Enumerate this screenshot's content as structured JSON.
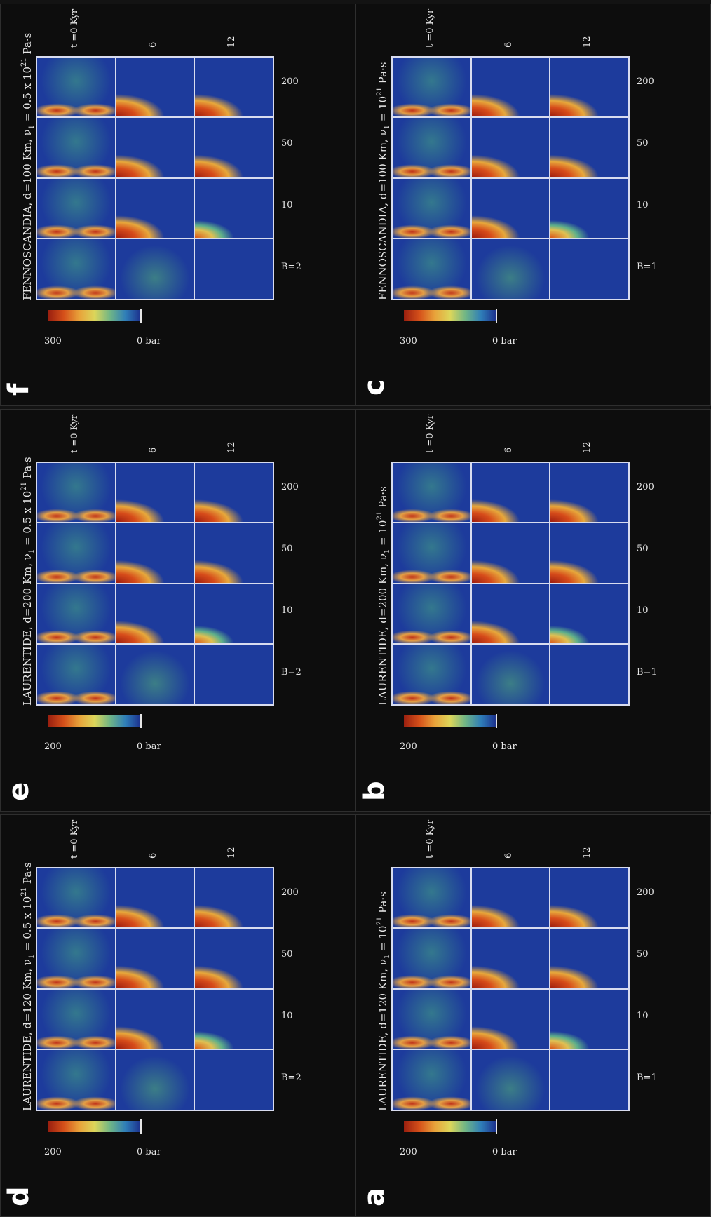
{
  "figure": {
    "panels": [
      {
        "id": "a",
        "letter": "a",
        "title_main": "LAURENTIDE,  d=120 Km,  ν",
        "title_sub": "1",
        "title_eq": " = 10",
        "title_sup": "21",
        "title_unit": " Pa·s",
        "colorbar_max": "200",
        "colorbar_min": "0 bar",
        "columns": [
          "B=1",
          "10",
          "50",
          "200"
        ],
        "rows": [
          "t =0 Kyr",
          "6",
          "12"
        ]
      },
      {
        "id": "b",
        "letter": "b",
        "title_main": "LAURENTIDE,  d=200 Km,  ν",
        "title_sub": "1",
        "title_eq": " = 10",
        "title_sup": "21",
        "title_unit": " Pa·s",
        "colorbar_max": "200",
        "colorbar_min": "0 bar",
        "columns": [
          "B=1",
          "10",
          "50",
          "200"
        ],
        "rows": [
          "t =0 Kyr",
          "6",
          "12"
        ]
      },
      {
        "id": "c",
        "letter": "c",
        "title_main": "FENNOSCANDIA,  d=100 Km,  ν",
        "title_sub": "1",
        "title_eq": " = 10",
        "title_sup": "21",
        "title_unit": " Pa·s",
        "colorbar_max": "300",
        "colorbar_min": "0 bar",
        "columns": [
          "B=1",
          "10",
          "50",
          "200"
        ],
        "rows": [
          "t =0 Kyr",
          "6",
          "12"
        ]
      },
      {
        "id": "d",
        "letter": "d",
        "title_main": "LAURENTIDE,  d=120 Km,  ν",
        "title_sub": "1",
        "title_eq": " = 0.5 x 10",
        "title_sup": "21",
        "title_unit": " Pa·s",
        "colorbar_max": "200",
        "colorbar_min": "0 bar",
        "columns": [
          "B=2",
          "10",
          "50",
          "200"
        ],
        "rows": [
          "t =0 Kyr",
          "6",
          "12"
        ]
      },
      {
        "id": "e",
        "letter": "e",
        "title_main": "LAURENTIDE,  d=200 Km,  ν",
        "title_sub": "1",
        "title_eq": " = 0.5 x 10",
        "title_sup": "21",
        "title_unit": " Pa·s",
        "colorbar_max": "200",
        "colorbar_min": "0 bar",
        "columns": [
          "B=2",
          "10",
          "50",
          "200"
        ],
        "rows": [
          "t =0 Kyr",
          "6",
          "12"
        ]
      },
      {
        "id": "f",
        "letter": "f",
        "title_main": "FENNOSCANDIA,  d=100 Km,  ν",
        "title_sub": "1",
        "title_eq": " = 0.5 x 10",
        "title_sup": "21",
        "title_unit": " Pa·s",
        "colorbar_max": "300",
        "colorbar_min": "0 bar",
        "columns": [
          "B=2",
          "10",
          "50",
          "200"
        ],
        "rows": [
          "t =0 Kyr",
          "6",
          "12"
        ]
      }
    ],
    "colormap": [
      "#9a1f0f",
      "#d5501a",
      "#e8a23a",
      "#dcd65a",
      "#6fb586",
      "#2f7eb8",
      "#1b2e8c"
    ]
  }
}
